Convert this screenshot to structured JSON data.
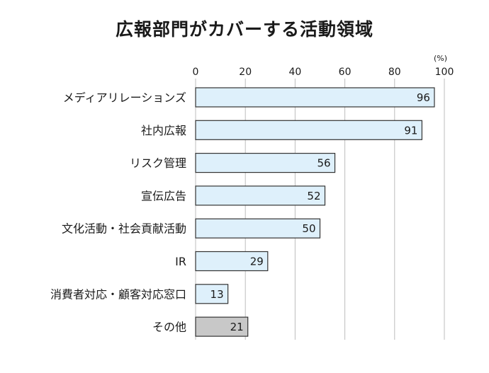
{
  "chart_data": {
    "type": "bar",
    "orientation": "horizontal",
    "title": "広報部門がカバーする活動領域",
    "unit": "(%)",
    "xlim": [
      0,
      100
    ],
    "ticks": [
      0,
      20,
      40,
      60,
      80,
      100
    ],
    "grid": true,
    "categories": [
      "メディアリレーションズ",
      "社内広報",
      "リスク管理",
      "宣伝広告",
      "文化活動・社会貢献活動",
      "IR",
      "消費者対応・顧客対応窓口",
      "その他"
    ],
    "values": [
      96,
      91,
      56,
      52,
      50,
      29,
      13,
      21
    ],
    "colors": {
      "bar": "#def0fb",
      "bar_other": "#c8c8c8",
      "stroke": "#333333",
      "grid": "#bdbdbd"
    }
  }
}
